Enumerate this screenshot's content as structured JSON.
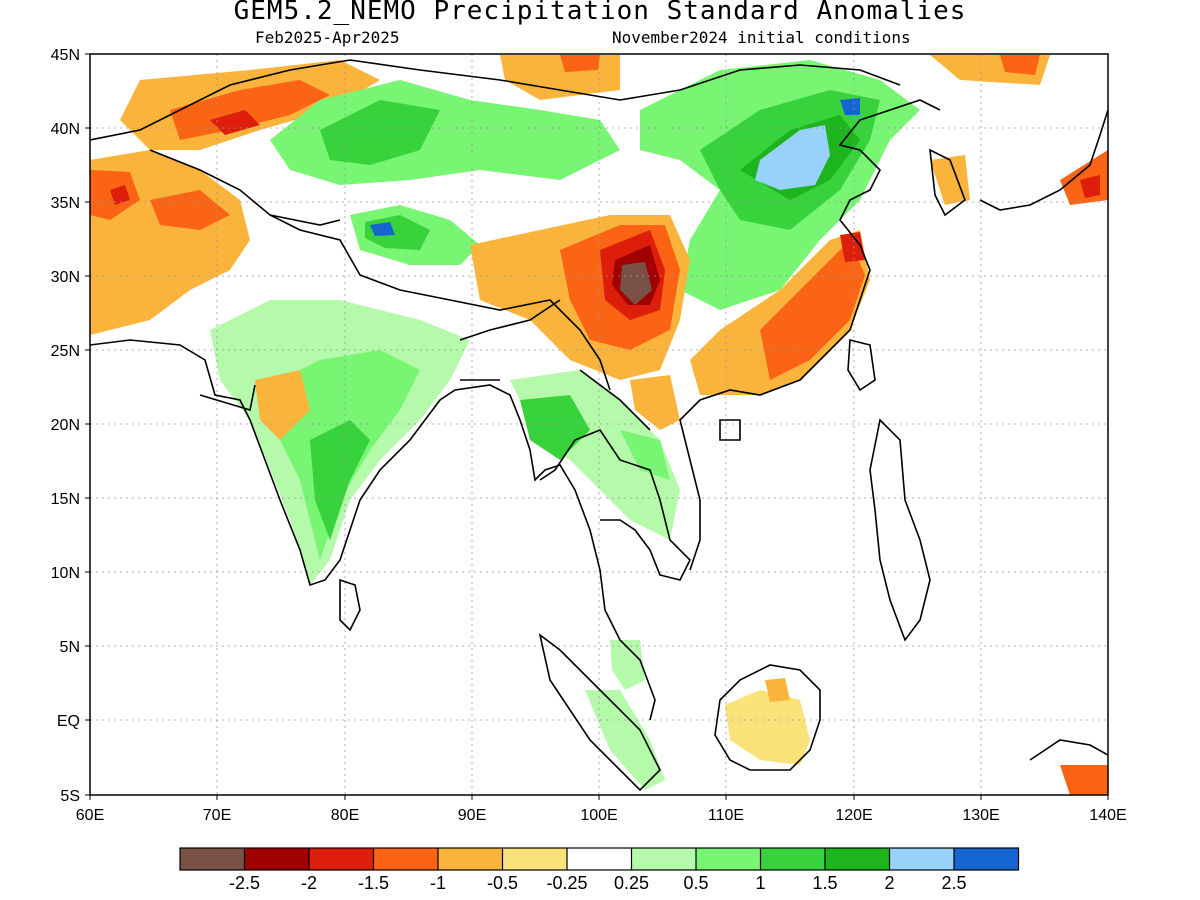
{
  "header": {
    "title": "GEM5.2_NEMO Precipitation Standard Anomalies",
    "period": "Feb2025-Apr2025",
    "init": "November2024 initial conditions"
  },
  "map": {
    "lon_range": [
      60,
      140
    ],
    "lat_range": [
      -5,
      45
    ],
    "x_ticks": [
      "60E",
      "70E",
      "80E",
      "90E",
      "100E",
      "110E",
      "120E",
      "130E",
      "140E"
    ],
    "y_ticks": [
      "5S",
      "EQ",
      "5N",
      "10N",
      "15N",
      "20N",
      "25N",
      "30N",
      "35N",
      "40N",
      "45N"
    ]
  },
  "colorbar": {
    "colors": [
      "#7a5147",
      "#a00000",
      "#dc1e0a",
      "#fa6414",
      "#fab43c",
      "#fae178",
      "#ffffff",
      "#b4faaa",
      "#78f573",
      "#37d23c",
      "#1eb41e",
      "#96d2fa",
      "#1464d2"
    ],
    "labels": [
      "-2.5",
      "-2",
      "-1.5",
      "-1",
      "-0.5",
      "-0.25",
      "0.25",
      "0.5",
      "1",
      "1.5",
      "2",
      "2.5"
    ]
  }
}
